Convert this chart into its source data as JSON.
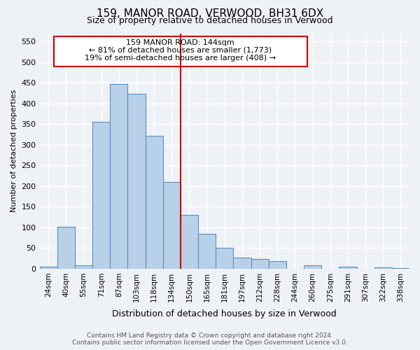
{
  "title": "159, MANOR ROAD, VERWOOD, BH31 6DX",
  "subtitle": "Size of property relative to detached houses in Verwood",
  "xlabel": "Distribution of detached houses by size in Verwood",
  "ylabel": "Number of detached properties",
  "bar_color": "#b8d0e8",
  "bar_edge_color": "#5a8fc0",
  "categories": [
    "24sqm",
    "40sqm",
    "55sqm",
    "71sqm",
    "87sqm",
    "103sqm",
    "118sqm",
    "134sqm",
    "150sqm",
    "165sqm",
    "181sqm",
    "197sqm",
    "212sqm",
    "228sqm",
    "244sqm",
    "260sqm",
    "275sqm",
    "291sqm",
    "307sqm",
    "322sqm",
    "338sqm"
  ],
  "values": [
    5,
    102,
    8,
    355,
    447,
    423,
    321,
    210,
    130,
    84,
    50,
    27,
    24,
    18,
    0,
    9,
    0,
    5,
    0,
    3,
    2
  ],
  "ylim": [
    0,
    570
  ],
  "yticks": [
    0,
    50,
    100,
    150,
    200,
    250,
    300,
    350,
    400,
    450,
    500,
    550
  ],
  "property_line_label": "159 MANOR ROAD: 144sqm",
  "annotation_line1": "← 81% of detached houses are smaller (1,773)",
  "annotation_line2": "19% of semi-detached houses are larger (408) →",
  "footer_line1": "Contains HM Land Registry data © Crown copyright and database right 2024.",
  "footer_line2": "Contains public sector information licensed under the Open Government Licence v3.0.",
  "background_color": "#eef2f7",
  "grid_color": "#ffffff",
  "line_color": "#cc0000",
  "box_edge_color": "#cc0000"
}
